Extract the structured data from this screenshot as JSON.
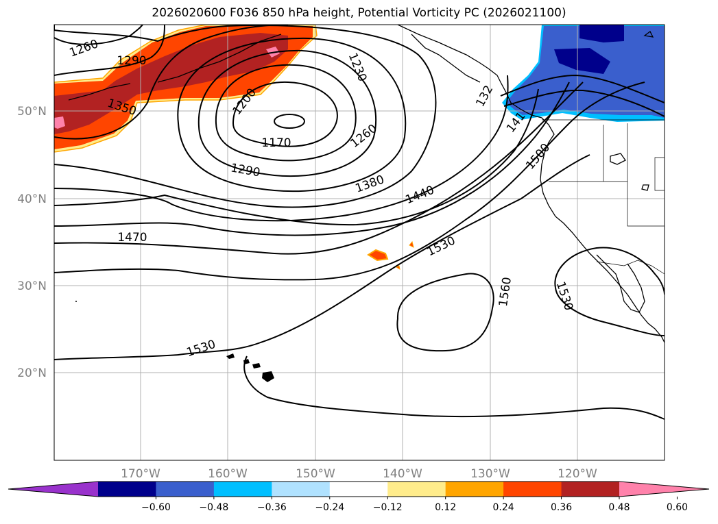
{
  "title": "2026020600 F036 850 hPa height, Potential Vorticity PC (2026021100)",
  "map": {
    "lat_labels": [
      "50°N",
      "40°N",
      "30°N",
      "20°N"
    ],
    "lon_labels": [
      "170°W",
      "160°W",
      "150°W",
      "140°W",
      "130°W",
      "120°W"
    ],
    "contour_labels": [
      "1260",
      "1290",
      "1350",
      "1200",
      "1230",
      "1170",
      "1260",
      "1290",
      "1380",
      "1440",
      "1470",
      "1530",
      "1560",
      "1530",
      "1530",
      "132",
      "141",
      "1500"
    ],
    "contour_color": "#000000",
    "grid_color": "#b0b0b0"
  },
  "colorbar": {
    "ticks": [
      "−0.60",
      "−0.48",
      "−0.36",
      "−0.24",
      "−0.12",
      "0.12",
      "0.24",
      "0.36",
      "0.48",
      "0.60"
    ],
    "colors": [
      "#9932cc",
      "#00008b",
      "#3a5fcd",
      "#00bfff",
      "#b0e2ff",
      "#ffffff",
      "#ffec8b",
      "#ffa500",
      "#ff4500",
      "#b22222",
      "#ff82ab"
    ]
  }
}
